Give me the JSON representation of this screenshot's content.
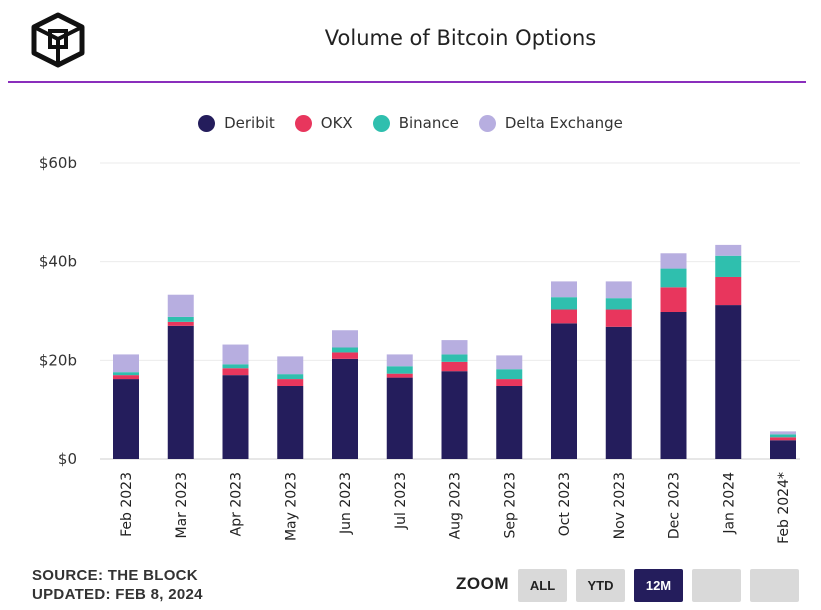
{
  "header": {
    "title": "Volume of Bitcoin Options",
    "logo_icon": "the-block-cube-logo"
  },
  "colors": {
    "accent_rule": "#8a2ebc",
    "deribit": "#241d5c",
    "okx": "#e8365d",
    "binance": "#2fbfae",
    "delta": "#b7aee0"
  },
  "legend": [
    {
      "name": "Deribit",
      "color": "#241d5c"
    },
    {
      "name": "OKX",
      "color": "#e8365d"
    },
    {
      "name": "Binance",
      "color": "#2fbfae"
    },
    {
      "name": "Delta Exchange",
      "color": "#b7aee0"
    }
  ],
  "chart_data": {
    "type": "bar",
    "stacked": true,
    "categories": [
      "Feb 2023",
      "Mar 2023",
      "Apr 2023",
      "May 2023",
      "Jun 2023",
      "Jul 2023",
      "Aug 2023",
      "Sep 2023",
      "Oct 2023",
      "Nov 2023",
      "Dec 2023",
      "Jan 2024",
      "Feb 2024*"
    ],
    "series": [
      {
        "name": "Deribit",
        "color": "#241d5c",
        "values": [
          16.2,
          27.0,
          17.0,
          14.8,
          20.3,
          16.5,
          17.8,
          14.8,
          27.5,
          26.8,
          29.8,
          31.2,
          3.8
        ]
      },
      {
        "name": "OKX",
        "color": "#e8365d",
        "values": [
          0.8,
          0.8,
          1.4,
          1.4,
          1.3,
          0.8,
          1.9,
          1.4,
          2.8,
          3.5,
          5.0,
          5.7,
          0.6
        ]
      },
      {
        "name": "Binance",
        "color": "#2fbfae",
        "values": [
          0.6,
          1.0,
          0.8,
          1.0,
          1.0,
          1.5,
          1.5,
          2.0,
          2.5,
          2.3,
          3.8,
          4.3,
          0.6
        ]
      },
      {
        "name": "Delta Exchange",
        "color": "#b7aee0",
        "values": [
          3.6,
          4.5,
          4.0,
          3.6,
          3.5,
          2.4,
          2.9,
          2.8,
          3.2,
          3.4,
          3.1,
          2.2,
          0.6
        ]
      }
    ],
    "y_ticks": [
      "$0",
      "$20b",
      "$40b",
      "$60b"
    ],
    "y_tick_values": [
      0,
      20,
      40,
      60
    ],
    "ylim": [
      0,
      60
    ],
    "grid": true,
    "legend_position": "top-center"
  },
  "footer": {
    "source": "SOURCE: THE BLOCK",
    "updated": "UPDATED: FEB 8, 2024"
  },
  "zoom": {
    "label": "ZOOM",
    "buttons": [
      {
        "label": "ALL",
        "active": false
      },
      {
        "label": "YTD",
        "active": false
      },
      {
        "label": "12M",
        "active": true
      },
      {
        "label": "",
        "active": false
      },
      {
        "label": "",
        "active": false
      }
    ]
  }
}
